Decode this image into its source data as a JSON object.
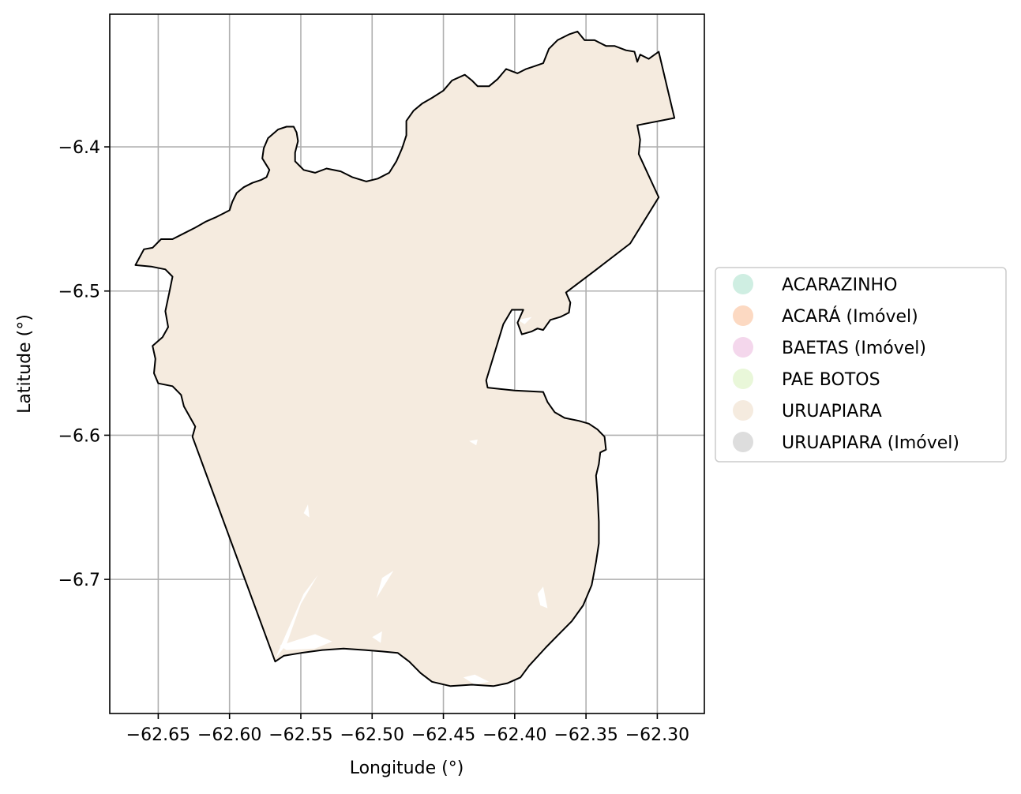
{
  "chart_data": {
    "type": "map",
    "xlabel": "Longitude (°)",
    "ylabel": "Latitude (°)",
    "xlim": [
      -62.684,
      -62.267
    ],
    "ylim": [
      -6.793,
      -6.308
    ],
    "grid": true,
    "x_ticks": [
      {
        "value": -62.65,
        "label": "−62.65"
      },
      {
        "value": -62.6,
        "label": "−62.60"
      },
      {
        "value": -62.55,
        "label": "−62.55"
      },
      {
        "value": -62.5,
        "label": "−62.50"
      },
      {
        "value": -62.45,
        "label": "−62.45"
      },
      {
        "value": -62.4,
        "label": "−62.40"
      },
      {
        "value": -62.35,
        "label": "−62.35"
      },
      {
        "value": -62.3,
        "label": "−62.30"
      }
    ],
    "y_ticks": [
      {
        "value": -6.4,
        "label": "−6.4"
      },
      {
        "value": -6.5,
        "label": "−6.5"
      },
      {
        "value": -6.6,
        "label": "−6.6"
      },
      {
        "value": -6.7,
        "label": "−6.7"
      }
    ],
    "legend_position": "right",
    "legend": [
      {
        "label": "ACARAZINHO",
        "color": "#cfeee2"
      },
      {
        "label": "ACARÁ (Imóvel)",
        "color": "#fcd9c2"
      },
      {
        "label": "BAETAS (Imóvel)",
        "color": "#f4d7ec"
      },
      {
        "label": "PAE BOTOS",
        "color": "#e9f7d9"
      },
      {
        "label": "URUAPIARA",
        "color": "#f5ebdf"
      },
      {
        "label": "URUAPIARA (Imóvel)",
        "color": "#dddddd"
      }
    ],
    "fill_color": "#f5ebdf",
    "outline_color": "#000000",
    "boundary": [
      [
        -62.666,
        -6.482
      ],
      [
        -62.66,
        -6.471
      ],
      [
        -62.654,
        -6.47
      ],
      [
        -62.648,
        -6.464
      ],
      [
        -62.64,
        -6.464
      ],
      [
        -62.632,
        -6.46
      ],
      [
        -62.624,
        -6.456
      ],
      [
        -62.617,
        -6.452
      ],
      [
        -62.61,
        -6.449
      ],
      [
        -62.604,
        -6.446
      ],
      [
        -62.6,
        -6.444
      ],
      [
        -62.598,
        -6.438
      ],
      [
        -62.595,
        -6.432
      ],
      [
        -62.59,
        -6.428
      ],
      [
        -62.584,
        -6.425
      ],
      [
        -62.578,
        -6.423
      ],
      [
        -62.574,
        -6.421
      ],
      [
        -62.572,
        -6.416
      ],
      [
        -62.577,
        -6.408
      ],
      [
        -62.576,
        -6.401
      ],
      [
        -62.573,
        -6.394
      ],
      [
        -62.566,
        -6.388
      ],
      [
        -62.56,
        -6.386
      ],
      [
        -62.555,
        -6.386
      ],
      [
        -62.553,
        -6.39
      ],
      [
        -62.552,
        -6.396
      ],
      [
        -62.554,
        -6.404
      ],
      [
        -62.554,
        -6.41
      ],
      [
        -62.548,
        -6.416
      ],
      [
        -62.54,
        -6.418
      ],
      [
        -62.532,
        -6.415
      ],
      [
        -62.522,
        -6.417
      ],
      [
        -62.514,
        -6.421
      ],
      [
        -62.504,
        -6.424
      ],
      [
        -62.496,
        -6.422
      ],
      [
        -62.488,
        -6.418
      ],
      [
        -62.483,
        -6.41
      ],
      [
        -62.479,
        -6.401
      ],
      [
        -62.476,
        -6.392
      ],
      [
        -62.476,
        -6.382
      ],
      [
        -62.471,
        -6.375
      ],
      [
        -62.465,
        -6.37
      ],
      [
        -62.458,
        -6.366
      ],
      [
        -62.45,
        -6.361
      ],
      [
        -62.444,
        -6.354
      ],
      [
        -62.435,
        -6.35
      ],
      [
        -62.43,
        -6.354
      ],
      [
        -62.426,
        -6.358
      ],
      [
        -62.418,
        -6.358
      ],
      [
        -62.412,
        -6.353
      ],
      [
        -62.406,
        -6.346
      ],
      [
        -62.398,
        -6.349
      ],
      [
        -62.392,
        -6.346
      ],
      [
        -62.386,
        -6.344
      ],
      [
        -62.38,
        -6.342
      ],
      [
        -62.376,
        -6.332
      ],
      [
        -62.37,
        -6.326
      ],
      [
        -62.362,
        -6.322
      ],
      [
        -62.356,
        -6.32
      ],
      [
        -62.351,
        -6.326
      ],
      [
        -62.344,
        -6.326
      ],
      [
        -62.336,
        -6.33
      ],
      [
        -62.33,
        -6.33
      ],
      [
        -62.322,
        -6.333
      ],
      [
        -62.316,
        -6.334
      ],
      [
        -62.314,
        -6.341
      ],
      [
        -62.312,
        -6.336
      ],
      [
        -62.306,
        -6.339
      ],
      [
        -62.299,
        -6.334
      ],
      [
        -62.288,
        -6.38
      ],
      [
        -62.314,
        -6.385
      ],
      [
        -62.312,
        -6.395
      ],
      [
        -62.313,
        -6.405
      ],
      [
        -62.299,
        -6.435
      ],
      [
        -62.319,
        -6.467
      ],
      [
        -62.344,
        -6.486
      ],
      [
        -62.364,
        -6.501
      ],
      [
        -62.361,
        -6.508
      ],
      [
        -62.362,
        -6.515
      ],
      [
        -62.368,
        -6.518
      ],
      [
        -62.375,
        -6.52
      ],
      [
        -62.38,
        -6.527
      ],
      [
        -62.384,
        -6.526
      ],
      [
        -62.388,
        -6.528
      ],
      [
        -62.395,
        -6.53
      ],
      [
        -62.398,
        -6.522
      ],
      [
        -62.394,
        -6.513
      ],
      [
        -62.402,
        -6.513
      ],
      [
        -62.408,
        -6.523
      ],
      [
        -62.42,
        -6.562
      ],
      [
        -62.419,
        -6.567
      ],
      [
        -62.4,
        -6.569
      ],
      [
        -62.38,
        -6.57
      ],
      [
        -62.377,
        -6.577
      ],
      [
        -62.372,
        -6.584
      ],
      [
        -62.365,
        -6.588
      ],
      [
        -62.355,
        -6.59
      ],
      [
        -62.348,
        -6.592
      ],
      [
        -62.342,
        -6.596
      ],
      [
        -62.337,
        -6.601
      ],
      [
        -62.336,
        -6.61
      ],
      [
        -62.34,
        -6.612
      ],
      [
        -62.341,
        -6.62
      ],
      [
        -62.343,
        -6.628
      ],
      [
        -62.342,
        -6.64
      ],
      [
        -62.341,
        -6.66
      ],
      [
        -62.341,
        -6.675
      ],
      [
        -62.343,
        -6.688
      ],
      [
        -62.346,
        -6.704
      ],
      [
        -62.352,
        -6.718
      ],
      [
        -62.36,
        -6.729
      ],
      [
        -62.368,
        -6.737
      ],
      [
        -62.378,
        -6.747
      ],
      [
        -62.39,
        -6.76
      ],
      [
        -62.396,
        -6.768
      ],
      [
        -62.405,
        -6.772
      ],
      [
        -62.415,
        -6.774
      ],
      [
        -62.43,
        -6.773
      ],
      [
        -62.445,
        -6.774
      ],
      [
        -62.458,
        -6.771
      ],
      [
        -62.466,
        -6.765
      ],
      [
        -62.474,
        -6.757
      ],
      [
        -62.482,
        -6.751
      ],
      [
        -62.493,
        -6.75
      ],
      [
        -62.505,
        -6.749
      ],
      [
        -62.52,
        -6.748
      ],
      [
        -62.535,
        -6.749
      ],
      [
        -62.55,
        -6.751
      ],
      [
        -62.562,
        -6.753
      ],
      [
        -62.568,
        -6.757
      ],
      [
        -62.626,
        -6.601
      ],
      [
        -62.624,
        -6.594
      ],
      [
        -62.632,
        -6.58
      ],
      [
        -62.634,
        -6.572
      ],
      [
        -62.64,
        -6.566
      ],
      [
        -62.65,
        -6.564
      ],
      [
        -62.653,
        -6.557
      ],
      [
        -62.652,
        -6.547
      ],
      [
        -62.654,
        -6.538
      ],
      [
        -62.647,
        -6.532
      ],
      [
        -62.643,
        -6.525
      ],
      [
        -62.645,
        -6.514
      ],
      [
        -62.642,
        -6.5
      ],
      [
        -62.64,
        -6.49
      ],
      [
        -62.645,
        -6.485
      ],
      [
        -62.655,
        -6.483
      ]
    ],
    "gaps": [
      [
        [
          -62.565,
          -6.746
        ],
        [
          -62.54,
          -6.738
        ],
        [
          -62.528,
          -6.743
        ],
        [
          -62.54,
          -6.748
        ],
        [
          -62.56,
          -6.749
        ]
      ],
      [
        [
          -62.568,
          -6.755
        ],
        [
          -62.548,
          -6.71
        ],
        [
          -62.538,
          -6.697
        ],
        [
          -62.55,
          -6.717
        ],
        [
          -62.56,
          -6.745
        ]
      ],
      [
        [
          -62.418,
          -6.771
        ],
        [
          -62.428,
          -6.766
        ],
        [
          -62.436,
          -6.768
        ],
        [
          -62.428,
          -6.773
        ]
      ],
      [
        [
          -62.548,
          -6.654
        ],
        [
          -62.545,
          -6.648
        ],
        [
          -62.544,
          -6.657
        ]
      ],
      [
        [
          -62.432,
          -6.604
        ],
        [
          -62.426,
          -6.603
        ],
        [
          -62.427,
          -6.607
        ]
      ],
      [
        [
          -62.497,
          -6.713
        ],
        [
          -62.485,
          -6.694
        ],
        [
          -62.493,
          -6.699
        ]
      ],
      [
        [
          -62.331,
          -6.625
        ],
        [
          -62.33,
          -6.632
        ],
        [
          -62.337,
          -6.634
        ],
        [
          -62.336,
          -6.626
        ]
      ],
      [
        [
          -62.398,
          -6.52
        ],
        [
          -62.388,
          -6.518
        ],
        [
          -62.393,
          -6.523
        ]
      ],
      [
        [
          -62.5,
          -6.74
        ],
        [
          -62.493,
          -6.736
        ],
        [
          -62.494,
          -6.744
        ]
      ],
      [
        [
          -62.384,
          -6.71
        ],
        [
          -62.38,
          -6.705
        ],
        [
          -62.377,
          -6.72
        ],
        [
          -62.382,
          -6.718
        ]
      ]
    ]
  }
}
